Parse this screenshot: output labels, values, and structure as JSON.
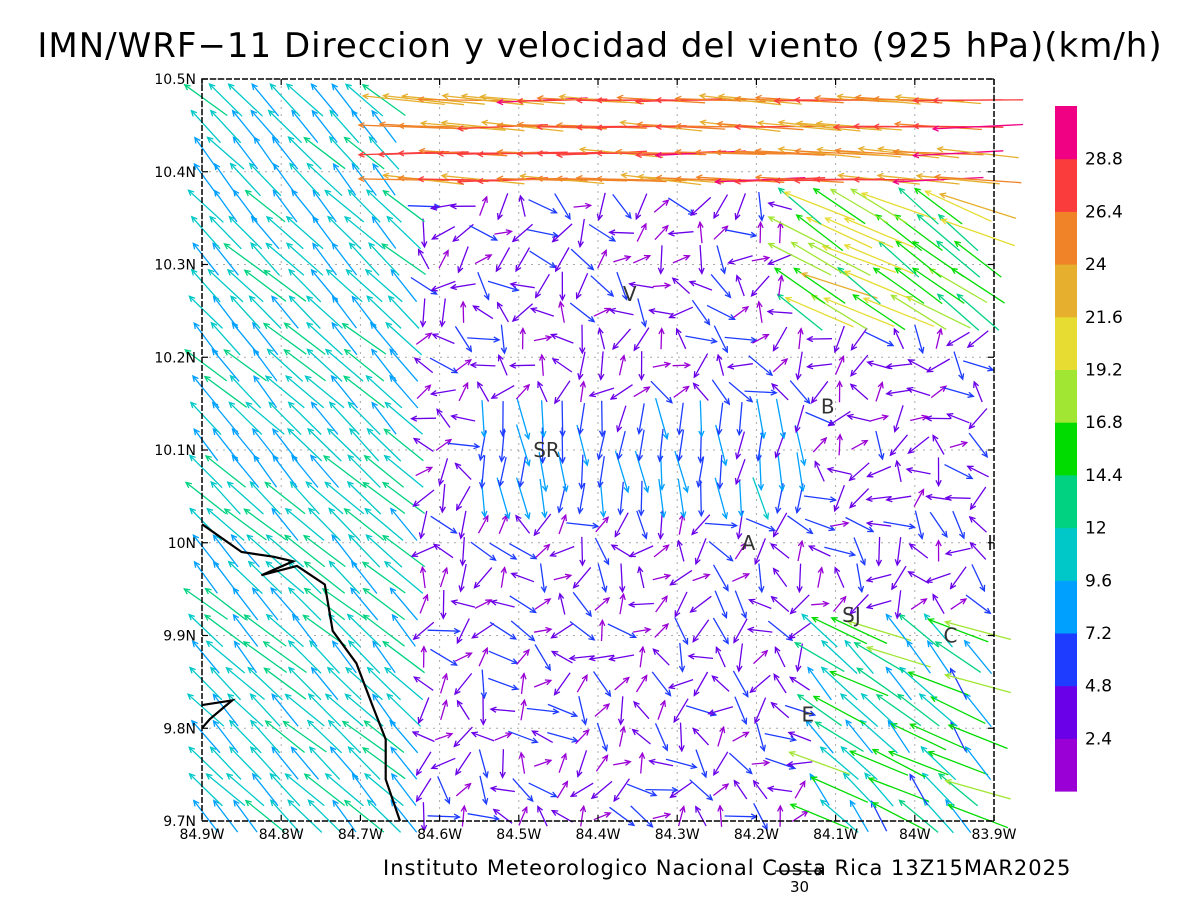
{
  "title": "IMN/WRF−11 Direccion y velocidad del viento (925 hPa)(km/h)",
  "footer": "Instituto Meteorologico Nacional Costa Rica 13Z15MAR2025",
  "scale_arrow_label": "30",
  "map": {
    "lon_range": [
      -84.9,
      -83.9
    ],
    "lat_range": [
      9.7,
      10.5
    ],
    "lon_ticks": [
      {
        "value": -84.9,
        "label": "84.9W"
      },
      {
        "value": -84.8,
        "label": "84.8W"
      },
      {
        "value": -84.7,
        "label": "84.7W"
      },
      {
        "value": -84.6,
        "label": "84.6W"
      },
      {
        "value": -84.5,
        "label": "84.5W"
      },
      {
        "value": -84.4,
        "label": "84.4W"
      },
      {
        "value": -84.3,
        "label": "84.3W"
      },
      {
        "value": -84.2,
        "label": "84.2W"
      },
      {
        "value": -84.1,
        "label": "84.1W"
      },
      {
        "value": -84.0,
        "label": "84W"
      },
      {
        "value": -83.9,
        "label": "83.9W"
      }
    ],
    "lat_ticks": [
      {
        "value": 10.5,
        "label": "10.5N"
      },
      {
        "value": 10.4,
        "label": "10.4N"
      },
      {
        "value": 10.3,
        "label": "10.3N"
      },
      {
        "value": 10.2,
        "label": "10.2N"
      },
      {
        "value": 10.1,
        "label": "10.1N"
      },
      {
        "value": 10.0,
        "label": "10N"
      },
      {
        "value": 9.9,
        "label": "9.9N"
      },
      {
        "value": 9.8,
        "label": "9.8N"
      },
      {
        "value": 9.7,
        "label": "9.7N"
      }
    ],
    "grid": true,
    "cities": [
      {
        "label": "V",
        "lon": -84.36,
        "lat": 10.268
      },
      {
        "label": "B",
        "lon": -84.11,
        "lat": 10.147
      },
      {
        "label": "SR",
        "lon": -84.465,
        "lat": 10.1
      },
      {
        "label": "A",
        "lon": -84.21,
        "lat": 10.0
      },
      {
        "label": "I",
        "lon": -83.905,
        "lat": 10.0
      },
      {
        "label": "SJ",
        "lon": -84.08,
        "lat": 9.922
      },
      {
        "label": "C",
        "lon": -83.955,
        "lat": 9.9
      },
      {
        "label": "E",
        "lon": -84.135,
        "lat": 9.815
      }
    ],
    "coastline": [
      [
        -84.9,
        10.02
      ],
      [
        -84.85,
        9.99
      ],
      [
        -84.81,
        9.985
      ],
      [
        -84.785,
        9.98
      ],
      [
        -84.825,
        9.965
      ],
      [
        -84.78,
        9.975
      ],
      [
        -84.745,
        9.955
      ],
      [
        -84.735,
        9.905
      ],
      [
        -84.705,
        9.87
      ],
      [
        -84.685,
        9.825
      ],
      [
        -84.668,
        9.788
      ],
      [
        -84.668,
        9.745
      ],
      [
        -84.65,
        9.7
      ]
    ],
    "coastline2": [
      [
        -84.9,
        9.825
      ],
      [
        -84.862,
        9.83
      ],
      [
        -84.89,
        9.81
      ],
      [
        -84.9,
        9.8
      ]
    ]
  },
  "colorbar": {
    "thresholds": [
      "2.4",
      "4.8",
      "7.2",
      "9.6",
      "12",
      "14.4",
      "16.8",
      "19.2",
      "21.6",
      "24",
      "26.4",
      "28.8"
    ],
    "colors": [
      "#9a00d6",
      "#6a00e8",
      "#1e3cff",
      "#00a0ff",
      "#00c8c8",
      "#00d282",
      "#00dc00",
      "#a0e632",
      "#e6dc32",
      "#e6af2d",
      "#f08228",
      "#fa3c3c",
      "#f00082"
    ]
  },
  "wind_field": {
    "grid_lon_step": 0.025,
    "grid_lat_step": 0.0286,
    "regions": [
      {
        "name": "northern jet",
        "lat_min": 10.37,
        "lon_min": -84.65,
        "speed_kmh": 27,
        "direction": "from east"
      },
      {
        "name": "northeast inflow",
        "lat_min": 10.24,
        "lon_min": -84.15,
        "speed_kmh": 20,
        "direction": "from southeast"
      },
      {
        "name": "western coast",
        "lon_max": -84.62,
        "speed_kmh": 10,
        "direction": "from southeast"
      },
      {
        "name": "central valley",
        "speed_kmh": 3,
        "direction": "variable"
      }
    ]
  }
}
